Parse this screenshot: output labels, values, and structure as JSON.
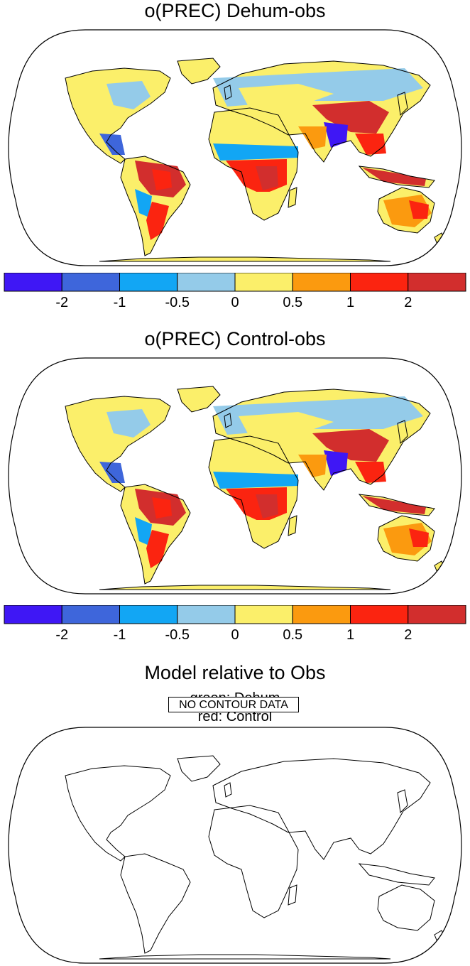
{
  "panels": [
    {
      "title": "o(PREC) Dehum-obs"
    },
    {
      "title": "o(PREC) Control-obs"
    },
    {
      "title": "Model relative to Obs",
      "subtitles": [
        "green: Dehum",
        "red: Control"
      ],
      "message": "NO CONTOUR DATA"
    }
  ],
  "colorbar": {
    "colors": [
      "#3f17f5",
      "#3e66db",
      "#12a6f4",
      "#94cbe9",
      "#fbef6a",
      "#fb9a0f",
      "#fb2410",
      "#d22e2d"
    ],
    "labels": [
      "-2",
      "-1",
      "-0.5",
      "0",
      "0.5",
      "1",
      "2"
    ]
  },
  "colors": {
    "outline": "#000000",
    "background": "#ffffff"
  }
}
